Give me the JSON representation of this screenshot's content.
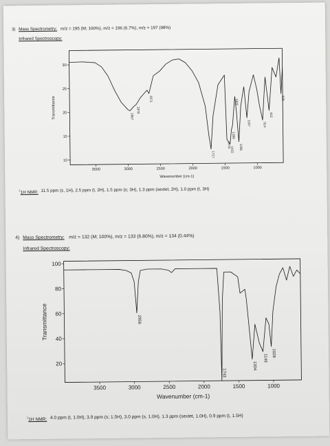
{
  "problem3": {
    "number": "3)",
    "ms_label": "Mass Spectrometry:",
    "ms_text": "m/z = 195 (M; 100%), m/z = 196 (6.7%), m/z = 197 (98%)",
    "ir_label": "Infrared Spectroscopy:",
    "nmr_label": "1H NMR:",
    "nmr_text": "11.5 ppm (s, 1H), 2.5 ppm (t, 2H), 1.5 ppm (s; 3H), 1.3 ppm (sextet, 2H), 1.0 ppm (t, 3H)"
  },
  "problem4": {
    "number": "4)",
    "ms_label": "Mass Spectrometry:",
    "ms_text": "m/z = 132 (M; 100%), m/z = 133 (6.80%), m/z = 134 (0.44%)",
    "ir_label": "Infrared Spectroscopy:",
    "nmr_label": "1H NMR:",
    "nmr_text": "4.0 ppm (t, 1.0H), 3.9 ppm (s; 1.5H), 3.0 ppm (s, 1.0H), 1.3 ppm  (sextet, 1.0H), 0.9 ppm (t, 1.5H)"
  },
  "chart_data": [
    {
      "type": "line",
      "xlabel": "Wavenumber (cm-1)",
      "ylabel": "Transmittance",
      "xlim": [
        3900,
        600
      ],
      "ylim": [
        9,
        33
      ],
      "xticks": [
        3500,
        3000,
        2500,
        2000,
        1500,
        1000
      ],
      "yticks": [
        10,
        15,
        20,
        25,
        30
      ],
      "grid": false,
      "x": [
        3900,
        3700,
        3500,
        3400,
        3300,
        3200,
        3100,
        3000,
        2967,
        2900,
        2870,
        2800,
        2700,
        2671,
        2600,
        2500,
        2400,
        2300,
        2200,
        2100,
        2000,
        1900,
        1800,
        1750,
        1717,
        1680,
        1600,
        1500,
        1470,
        1422,
        1398,
        1380,
        1342,
        1320,
        1285,
        1250,
        1200,
        1157,
        1120,
        1050,
        1000,
        960,
        914,
        870,
        812,
        760,
        700,
        650,
        626,
        600
      ],
      "y": [
        30.5,
        30.6,
        30.4,
        29.5,
        27.5,
        24.5,
        22,
        20.5,
        20.2,
        21.2,
        21.5,
        23,
        24.5,
        23.8,
        27.5,
        28.5,
        30,
        30.8,
        31,
        30.2,
        28.5,
        26,
        21,
        15,
        12,
        19,
        25.5,
        27.5,
        14,
        13,
        16,
        17,
        23,
        20,
        13.5,
        21,
        25,
        18.5,
        24,
        27.5,
        24.5,
        21,
        18,
        27,
        20,
        29,
        27,
        31,
        23.5,
        29
      ],
      "peak_labels": [
        {
          "x": 2967,
          "label": "2967"
        },
        {
          "x": 2870,
          "label": "2870"
        },
        {
          "x": 2671,
          "label": "2671"
        },
        {
          "x": 1717,
          "label": "1717"
        },
        {
          "x": 1470,
          "label": "1470"
        },
        {
          "x": 1422,
          "label": "1422"
        },
        {
          "x": 1398,
          "label": "1398"
        },
        {
          "x": 1342,
          "label": "1342"
        },
        {
          "x": 1285,
          "label": "1285"
        },
        {
          "x": 1157,
          "label": "1157"
        },
        {
          "x": 914,
          "label": "914"
        },
        {
          "x": 812,
          "label": "812"
        },
        {
          "x": 626,
          "label": "626"
        }
      ]
    },
    {
      "type": "line",
      "xlabel": "Wavenumber (cm-1)",
      "ylabel": "Transmittance",
      "xlim": [
        4000,
        600
      ],
      "ylim": [
        5,
        102
      ],
      "xticks": [
        3500,
        3000,
        2500,
        2000,
        1500,
        1000
      ],
      "yticks": [
        20,
        40,
        60,
        80,
        100
      ],
      "grid": false,
      "x": [
        4000,
        3700,
        3500,
        3200,
        3100,
        3030,
        2990,
        2956,
        2930,
        2900,
        2800,
        2600,
        2500,
        2450,
        2400,
        2200,
        2000,
        1900,
        1800,
        1760,
        1743,
        1725,
        1700,
        1600,
        1500,
        1470,
        1400,
        1380,
        1304,
        1260,
        1200,
        1149,
        1100,
        1060,
        1028,
        1000,
        950,
        900,
        850,
        800,
        750,
        700,
        650,
        600
      ],
      "y": [
        95,
        95,
        95,
        95,
        94,
        92,
        85,
        60,
        85,
        94,
        95,
        95,
        94,
        92,
        95,
        95,
        95,
        95,
        95,
        60,
        5,
        70,
        92,
        92,
        88,
        75,
        78,
        70,
        22,
        50,
        35,
        28,
        55,
        50,
        32,
        60,
        80,
        90,
        95,
        85,
        96,
        88,
        93,
        90
      ],
      "peak_labels": [
        {
          "x": 2956,
          "label": "2956"
        },
        {
          "x": 1743,
          "label": "1743"
        },
        {
          "x": 1304,
          "label": "1304"
        },
        {
          "x": 1149,
          "label": "1149"
        },
        {
          "x": 1028,
          "label": "1028"
        }
      ]
    }
  ]
}
